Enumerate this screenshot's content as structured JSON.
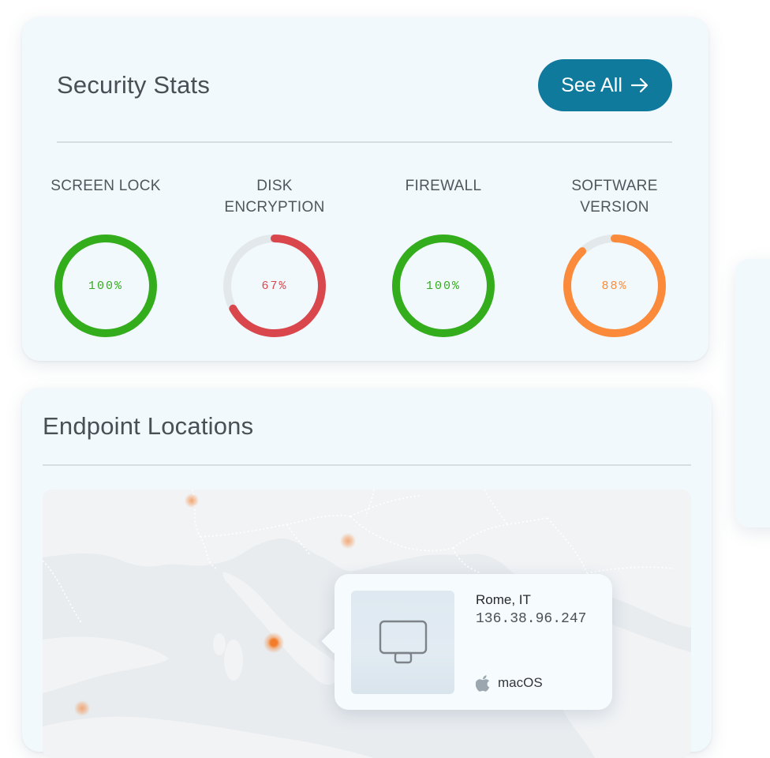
{
  "security_stats": {
    "title": "Security Stats",
    "see_all_label": "See All",
    "see_all_icon": "arrow-right-icon",
    "track_color": "#e3e8eb",
    "items": [
      {
        "label": "SCREEN LOCK",
        "value_text": "100%",
        "percent": 100,
        "color": "#34ad1c"
      },
      {
        "label": "DISK\nENCRYPTION",
        "value_text": "67%",
        "percent": 67,
        "color": "#d9474c"
      },
      {
        "label": "FIREWALL",
        "value_text": "100%",
        "percent": 100,
        "color": "#34ad1c"
      },
      {
        "label": "SOFTWARE\nVERSION",
        "value_text": "88%",
        "percent": 88,
        "color": "#fb8b3a"
      }
    ]
  },
  "endpoint_locations": {
    "title": "Endpoint Locations",
    "pin_color": "#f47b28",
    "selected": {
      "city": "Rome, IT",
      "ip": "136.38.96.247",
      "os": "macOS",
      "os_icon": "apple-icon",
      "device_icon": "monitor-icon"
    }
  },
  "colors": {
    "accent": "#0f7a9c",
    "card_background": "#f2f9fd"
  }
}
